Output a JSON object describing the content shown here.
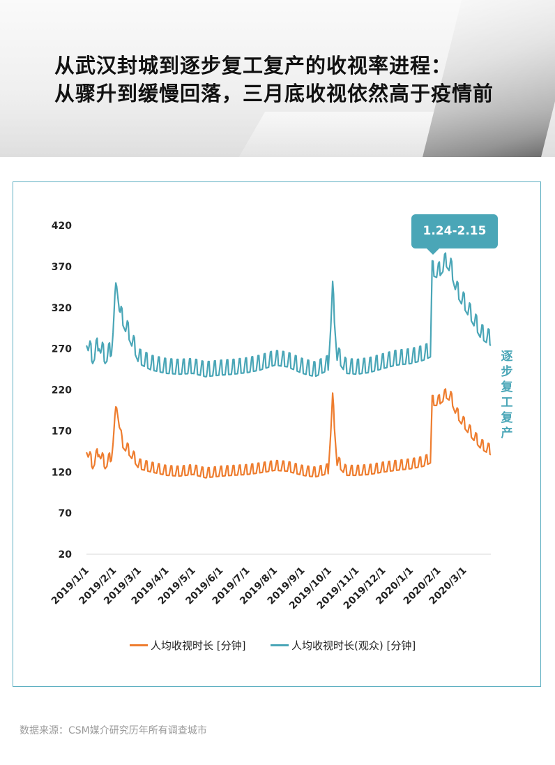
{
  "title": {
    "line1": "从武汉封城到逐步复工复产的收视率进程：",
    "line2": "从骤升到缓慢回落，三月底收视依然高于疫情前"
  },
  "callout": {
    "text": "1.24-2.15"
  },
  "side_label": "逐步复工复产",
  "source": "数据来源：CSM媒介研究历年所有调查城市",
  "colors": {
    "orange": "#ee7d2f",
    "teal": "#4aa6b7"
  },
  "chart_data": {
    "type": "line",
    "ylim": [
      20,
      420
    ],
    "yticks": [
      20,
      70,
      120,
      170,
      220,
      270,
      320,
      370,
      420
    ],
    "xticks": [
      "2019/1/1",
      "2019/2/1",
      "2019/3/1",
      "2019/4/1",
      "2019/5/1",
      "2019/6/1",
      "2019/7/1",
      "2019/8/1",
      "2019/9/1",
      "2019/10/1",
      "2019/11/1",
      "2019/12/1",
      "2020/1/1",
      "2020/2/1",
      "2020/3/1"
    ],
    "x_range": [
      "2019/1/1",
      "2020/3/31"
    ],
    "legend_position": "bottom",
    "series": [
      {
        "name": "人均收视时长 [分钟]",
        "color": "#ee7d2f",
        "points": [
          [
            "2019/1/1",
            148
          ],
          [
            "2019/1/8",
            128
          ],
          [
            "2019/1/15",
            145
          ],
          [
            "2019/1/22",
            128
          ],
          [
            "2019/1/29",
            138
          ],
          [
            "2019/2/4",
            202
          ],
          [
            "2019/2/10",
            155
          ],
          [
            "2019/2/20",
            142
          ],
          [
            "2019/3/1",
            128
          ],
          [
            "2019/3/15",
            124
          ],
          [
            "2019/4/1",
            120
          ],
          [
            "2019/4/15",
            119
          ],
          [
            "2019/5/1",
            121
          ],
          [
            "2019/5/15",
            117
          ],
          [
            "2019/6/1",
            119
          ],
          [
            "2019/6/15",
            120
          ],
          [
            "2019/7/1",
            121
          ],
          [
            "2019/7/15",
            123
          ],
          [
            "2019/8/1",
            126
          ],
          [
            "2019/8/15",
            125
          ],
          [
            "2019/9/1",
            120
          ],
          [
            "2019/9/15",
            118
          ],
          [
            "2019/9/30",
            122
          ],
          [
            "2019/10/5",
            208
          ],
          [
            "2019/10/10",
            132
          ],
          [
            "2019/10/20",
            120
          ],
          [
            "2019/11/1",
            120
          ],
          [
            "2019/11/15",
            121
          ],
          [
            "2019/12/1",
            124
          ],
          [
            "2019/12/15",
            126
          ],
          [
            "2020/1/1",
            128
          ],
          [
            "2020/1/15",
            131
          ],
          [
            "2020/1/23",
            135
          ],
          [
            "2020/1/25",
            205
          ],
          [
            "2020/2/1",
            205
          ],
          [
            "2020/2/10",
            214
          ],
          [
            "2020/2/15",
            210
          ],
          [
            "2020/2/22",
            190
          ],
          [
            "2020/3/1",
            178
          ],
          [
            "2020/3/10",
            165
          ],
          [
            "2020/3/20",
            152
          ],
          [
            "2020/3/31",
            145
          ]
        ]
      },
      {
        "name": "人均收视时长(观众) [分钟]",
        "color": "#4aa6b7",
        "points": [
          [
            "2019/1/1",
            280
          ],
          [
            "2019/1/8",
            258
          ],
          [
            "2019/1/15",
            276
          ],
          [
            "2019/1/22",
            258
          ],
          [
            "2019/1/29",
            268
          ],
          [
            "2019/2/4",
            352
          ],
          [
            "2019/2/8",
            312
          ],
          [
            "2019/2/20",
            282
          ],
          [
            "2019/3/1",
            258
          ],
          [
            "2019/3/15",
            250
          ],
          [
            "2019/4/1",
            246
          ],
          [
            "2019/4/15",
            245
          ],
          [
            "2019/5/1",
            246
          ],
          [
            "2019/5/15",
            242
          ],
          [
            "2019/6/1",
            244
          ],
          [
            "2019/6/15",
            245
          ],
          [
            "2019/7/1",
            247
          ],
          [
            "2019/7/15",
            250
          ],
          [
            "2019/8/1",
            256
          ],
          [
            "2019/8/15",
            254
          ],
          [
            "2019/9/1",
            246
          ],
          [
            "2019/9/15",
            242
          ],
          [
            "2019/9/30",
            250
          ],
          [
            "2019/10/5",
            340
          ],
          [
            "2019/10/10",
            262
          ],
          [
            "2019/10/20",
            246
          ],
          [
            "2019/11/1",
            245
          ],
          [
            "2019/11/15",
            247
          ],
          [
            "2019/12/1",
            252
          ],
          [
            "2019/12/15",
            256
          ],
          [
            "2020/1/1",
            258
          ],
          [
            "2020/1/15",
            262
          ],
          [
            "2020/1/23",
            266
          ],
          [
            "2020/1/25",
            365
          ],
          [
            "2020/2/1",
            362
          ],
          [
            "2020/2/10",
            376
          ],
          [
            "2020/2/15",
            368
          ],
          [
            "2020/2/22",
            340
          ],
          [
            "2020/3/1",
            325
          ],
          [
            "2020/3/10",
            308
          ],
          [
            "2020/3/20",
            288
          ],
          [
            "2020/3/31",
            280
          ]
        ]
      }
    ]
  }
}
